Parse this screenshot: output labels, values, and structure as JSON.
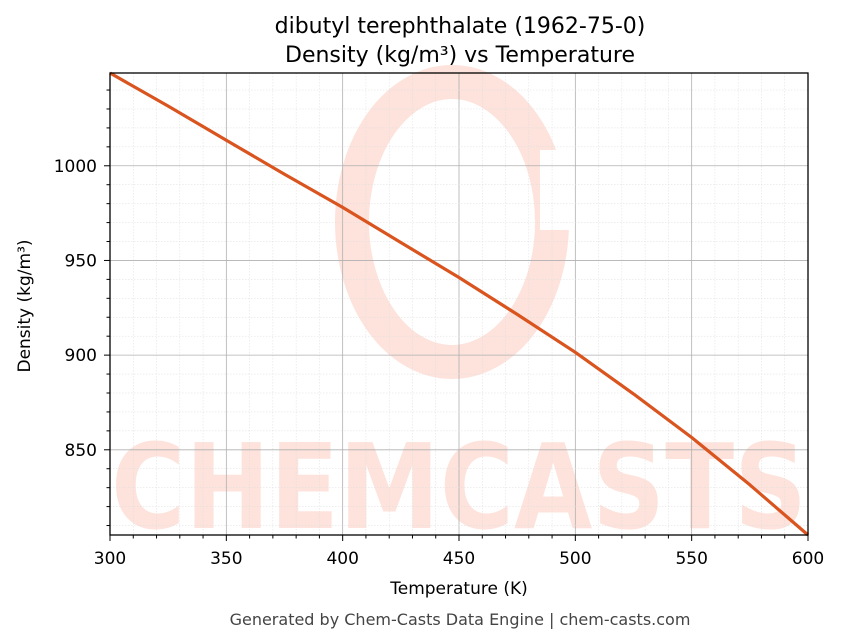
{
  "chart_data": {
    "type": "line",
    "title_line1": "dibutyl terephthalate (1962-75-0)",
    "title_line2": "Density (kg/m³) vs Temperature",
    "xlabel": "Temperature (K)",
    "ylabel": "Density (kg/m³)",
    "xlim": [
      300,
      600
    ],
    "ylim": [
      805,
      1049
    ],
    "xticks": [
      300,
      350,
      400,
      450,
      500,
      550,
      600
    ],
    "yticks": [
      850,
      900,
      950,
      1000
    ],
    "grid": true,
    "series": [
      {
        "color": "#d9541e",
        "x": [
          300,
          325,
          350,
          375,
          400,
          425,
          450,
          475,
          500,
          525,
          550,
          575,
          600
        ],
        "y": [
          1049,
          1031.5,
          1013.5,
          995.5,
          978,
          959.5,
          941,
          921.5,
          901.5,
          879.5,
          856.5,
          831.5,
          805
        ]
      }
    ]
  },
  "watermark": {
    "text": "CHEMCASTS",
    "color": "#fde3dc"
  },
  "footer": "Generated by Chem-Casts Data Engine | chem-casts.com"
}
